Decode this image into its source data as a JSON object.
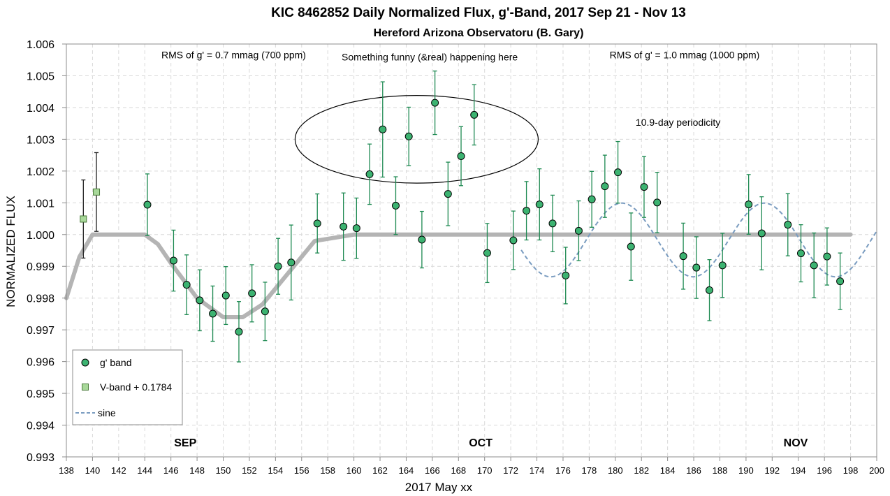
{
  "chart_data": {
    "type": "scatter",
    "title": "KIC 8462852 Daily  Normalized Flux, g'-Band, 2017 Sep 21 - Nov 13",
    "subtitle": "Hereford Arizona Observatoru (B. Gary)",
    "xlabel": "2017 May xx",
    "ylabel": "NORMALIZED FLUX",
    "xlim": [
      138,
      200
    ],
    "ylim": [
      0.993,
      1.006
    ],
    "x_ticks": [
      "138",
      "140",
      "142",
      "144",
      "146",
      "148",
      "150",
      "152",
      "154",
      "156",
      "158",
      "160",
      "162",
      "164",
      "166",
      "168",
      "170",
      "172",
      "174",
      "176",
      "178",
      "180",
      "182",
      "184",
      "186",
      "188",
      "190",
      "192",
      "194",
      "196",
      "198",
      "200"
    ],
    "y_ticks": [
      "1.006",
      "1.005",
      "1.004",
      "1.003",
      "1.002",
      "1.001",
      "1.000",
      "0.999",
      "0.998",
      "0.997",
      "0.996",
      "0.995",
      "0.994",
      "0.993"
    ],
    "grid": true,
    "legend_position": "bottom-left",
    "colors": {
      "g_band": "#3cb371",
      "v_band": "#a8d89a",
      "g_err": "#1e8a52",
      "model": "#b4b4b4",
      "sine": "#7a9cc0"
    },
    "series": [
      {
        "name": "g' band",
        "marker": "circle",
        "points": [
          {
            "x": 144.2,
            "y": 1.00094,
            "err": 0.00097
          },
          {
            "x": 146.2,
            "y": 0.99918,
            "err": 0.00096
          },
          {
            "x": 147.2,
            "y": 0.99842,
            "err": 0.00094
          },
          {
            "x": 148.2,
            "y": 0.99793,
            "err": 0.00096
          },
          {
            "x": 149.2,
            "y": 0.99751,
            "err": 0.00087
          },
          {
            "x": 150.2,
            "y": 0.99808,
            "err": 0.00091
          },
          {
            "x": 151.2,
            "y": 0.99694,
            "err": 0.00095
          },
          {
            "x": 152.2,
            "y": 0.99815,
            "err": 0.0009
          },
          {
            "x": 153.2,
            "y": 0.99758,
            "err": 0.00092
          },
          {
            "x": 154.2,
            "y": 0.999,
            "err": 0.00088
          },
          {
            "x": 155.2,
            "y": 0.99912,
            "err": 0.00118
          },
          {
            "x": 157.2,
            "y": 1.00035,
            "err": 0.00093
          },
          {
            "x": 159.2,
            "y": 1.00025,
            "err": 0.00106
          },
          {
            "x": 160.2,
            "y": 1.0002,
            "err": 0.00095
          },
          {
            "x": 161.2,
            "y": 1.0019,
            "err": 0.00095
          },
          {
            "x": 162.2,
            "y": 1.00331,
            "err": 0.0015
          },
          {
            "x": 163.2,
            "y": 1.00091,
            "err": 0.00091
          },
          {
            "x": 164.2,
            "y": 1.00309,
            "err": 0.00092
          },
          {
            "x": 165.2,
            "y": 0.99984,
            "err": 0.00089
          },
          {
            "x": 166.2,
            "y": 1.00415,
            "err": 0.001
          },
          {
            "x": 167.2,
            "y": 1.00128,
            "err": 0.001
          },
          {
            "x": 168.2,
            "y": 1.00247,
            "err": 0.00093
          },
          {
            "x": 169.2,
            "y": 1.00377,
            "err": 0.00095
          },
          {
            "x": 170.2,
            "y": 0.99942,
            "err": 0.00093
          },
          {
            "x": 172.2,
            "y": 0.99982,
            "err": 0.00092
          },
          {
            "x": 173.2,
            "y": 1.00075,
            "err": 0.00092
          },
          {
            "x": 174.2,
            "y": 1.00095,
            "err": 0.00112
          },
          {
            "x": 175.2,
            "y": 1.00035,
            "err": 0.00089
          },
          {
            "x": 176.2,
            "y": 0.99871,
            "err": 0.00089
          },
          {
            "x": 177.2,
            "y": 1.00012,
            "err": 0.00094
          },
          {
            "x": 178.2,
            "y": 1.00111,
            "err": 0.00088
          },
          {
            "x": 179.2,
            "y": 1.00152,
            "err": 0.00098
          },
          {
            "x": 180.2,
            "y": 1.00196,
            "err": 0.00097
          },
          {
            "x": 181.2,
            "y": 0.99962,
            "err": 0.00106
          },
          {
            "x": 182.2,
            "y": 1.0015,
            "err": 0.00096
          },
          {
            "x": 183.2,
            "y": 1.00101,
            "err": 0.00095
          },
          {
            "x": 185.2,
            "y": 0.99932,
            "err": 0.00104
          },
          {
            "x": 186.2,
            "y": 0.99896,
            "err": 0.00097
          },
          {
            "x": 187.2,
            "y": 0.99825,
            "err": 0.00096
          },
          {
            "x": 188.2,
            "y": 0.99903,
            "err": 0.00101
          },
          {
            "x": 190.2,
            "y": 1.00095,
            "err": 0.00094
          },
          {
            "x": 191.2,
            "y": 1.00004,
            "err": 0.00115
          },
          {
            "x": 193.2,
            "y": 1.00031,
            "err": 0.00098
          },
          {
            "x": 194.2,
            "y": 0.99941,
            "err": 0.0009
          },
          {
            "x": 195.2,
            "y": 0.99903,
            "err": 0.00102
          },
          {
            "x": 196.2,
            "y": 0.99931,
            "err": 0.0009
          },
          {
            "x": 197.2,
            "y": 0.99853,
            "err": 0.00089
          }
        ]
      },
      {
        "name": "V-band + 0.1784",
        "marker": "square",
        "points": [
          {
            "x": 139.3,
            "y": 1.00049,
            "err": 0.00123
          },
          {
            "x": 140.3,
            "y": 1.00134,
            "err": 0.00124
          }
        ]
      },
      {
        "name": "sine",
        "style": "dashed",
        "function": {
          "type": "sine",
          "mean": 0.99983,
          "amplitude": 0.00116,
          "period_days": 10.9,
          "peak_x": 180.5,
          "x_range": [
            172.8,
            200
          ]
        }
      },
      {
        "style": "solid-thick",
        "points": [
          {
            "x": 138,
            "y": 0.998
          },
          {
            "x": 139,
            "y": 0.9993
          },
          {
            "x": 140,
            "y": 1.0
          },
          {
            "x": 144,
            "y": 1.0
          },
          {
            "x": 145,
            "y": 0.9997
          },
          {
            "x": 146,
            "y": 0.9991
          },
          {
            "x": 148,
            "y": 0.998
          },
          {
            "x": 150,
            "y": 0.9974
          },
          {
            "x": 151.5,
            "y": 0.9974
          },
          {
            "x": 153,
            "y": 0.9978
          },
          {
            "x": 155,
            "y": 0.9988
          },
          {
            "x": 157,
            "y": 0.9998
          },
          {
            "x": 160,
            "y": 1.0
          },
          {
            "x": 198,
            "y": 1.0
          }
        ]
      }
    ],
    "annotations": [
      {
        "text": "RMS of g' = 0.7 mmag (700 ppm)",
        "x": 150.8,
        "y": 1.00555
      },
      {
        "text": "Something funny (&real) happening here",
        "x": 165.8,
        "y": 1.00548
      },
      {
        "text": "RMS of g' = 1.0 mmag (1000 ppm)",
        "x": 185.3,
        "y": 1.00555
      },
      {
        "text": "10.9-day periodicity",
        "x": 184.8,
        "y": 1.00343
      }
    ],
    "months": [
      {
        "text": "SEP",
        "x": 147.1
      },
      {
        "text": "OCT",
        "x": 169.7
      },
      {
        "text": "NOV",
        "x": 193.8
      }
    ],
    "highlight_ellipse": {
      "cx": 164.8,
      "cy": 1.003,
      "rx_days": 9.3,
      "ry_flux": 0.00138
    }
  }
}
